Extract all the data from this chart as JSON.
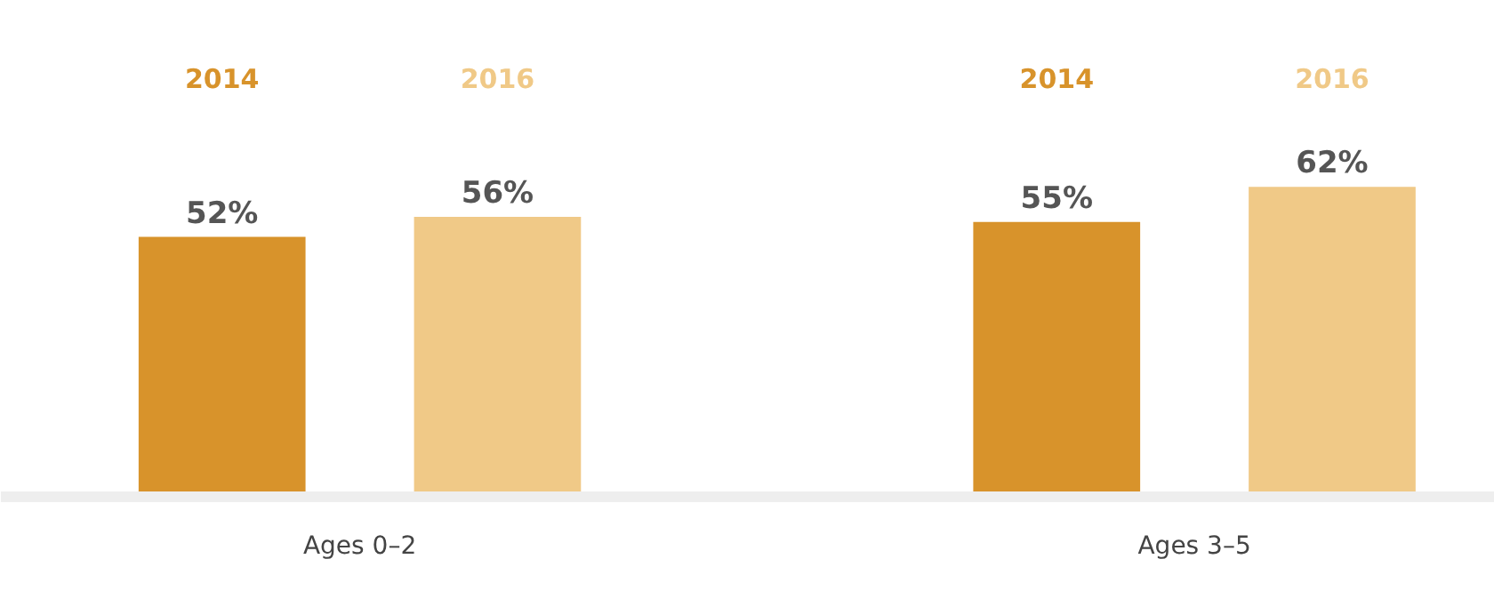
{
  "chart_data": {
    "type": "bar",
    "categories": [
      "Ages 0–2",
      "Ages 3–5"
    ],
    "legend": false,
    "grid": false,
    "series": [
      {
        "name": "2014",
        "color": "#d8932b",
        "values": [
          52,
          55
        ],
        "value_labels": [
          "52%",
          "55%"
        ]
      },
      {
        "name": "2016",
        "color": "#f0c987",
        "values": [
          56,
          62
        ],
        "value_labels": [
          "56%",
          "62%"
        ]
      }
    ]
  }
}
